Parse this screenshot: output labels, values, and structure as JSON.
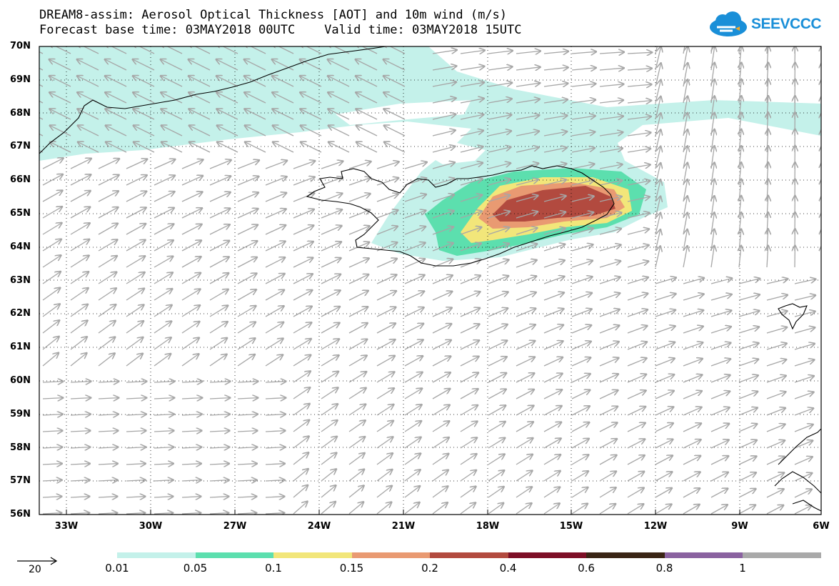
{
  "title": {
    "line1": "DREAM8-assim: Aerosol Optical Thickness [AOT] and 10m wind (m/s)",
    "line2": "Forecast base time: 03MAY2018 00UTC    Valid time: 03MAY2018 15UTC"
  },
  "logo": {
    "text": "SEEVCCC",
    "icon": "cloud-icon",
    "color": "#1a8fd8"
  },
  "axes": {
    "lat_labels": [
      "70N",
      "69N",
      "68N",
      "67N",
      "66N",
      "65N",
      "64N",
      "63N",
      "62N",
      "61N",
      "60N",
      "59N",
      "58N",
      "57N",
      "56N"
    ],
    "lon_labels": [
      "33W",
      "30W",
      "27W",
      "24W",
      "21W",
      "18W",
      "15W",
      "12W",
      "9W",
      "6W"
    ],
    "lat_range": [
      56,
      70
    ],
    "lon_range": [
      -34.5,
      -6
    ]
  },
  "legend": {
    "wind_reference": "20",
    "bins": [
      "0.01",
      "0.05",
      "0.1",
      "0.15",
      "0.2",
      "0.4",
      "0.6",
      "0.8",
      "1"
    ],
    "colors": [
      "#c4f1ea",
      "#5cdfae",
      "#f2e67a",
      "#e99a72",
      "#b24a3f",
      "#7d0f26",
      "#3a2515",
      "#8a62a0",
      "#a9a9a9"
    ]
  },
  "chart_data": {
    "type": "heatmap",
    "variable": "Aerosol Optical Thickness [AOT]",
    "overlay": "10m wind vectors (m/s)",
    "levels": [
      0.01,
      0.05,
      0.1,
      0.15,
      0.2,
      0.4,
      0.6,
      0.8,
      1
    ],
    "plume_max_region": {
      "lon": [
        -17,
        -13
      ],
      "lat": [
        64.9,
        66.0
      ],
      "aot_range": "0.2-0.4"
    },
    "wind_direction": "mostly from southwest toward northeast"
  }
}
